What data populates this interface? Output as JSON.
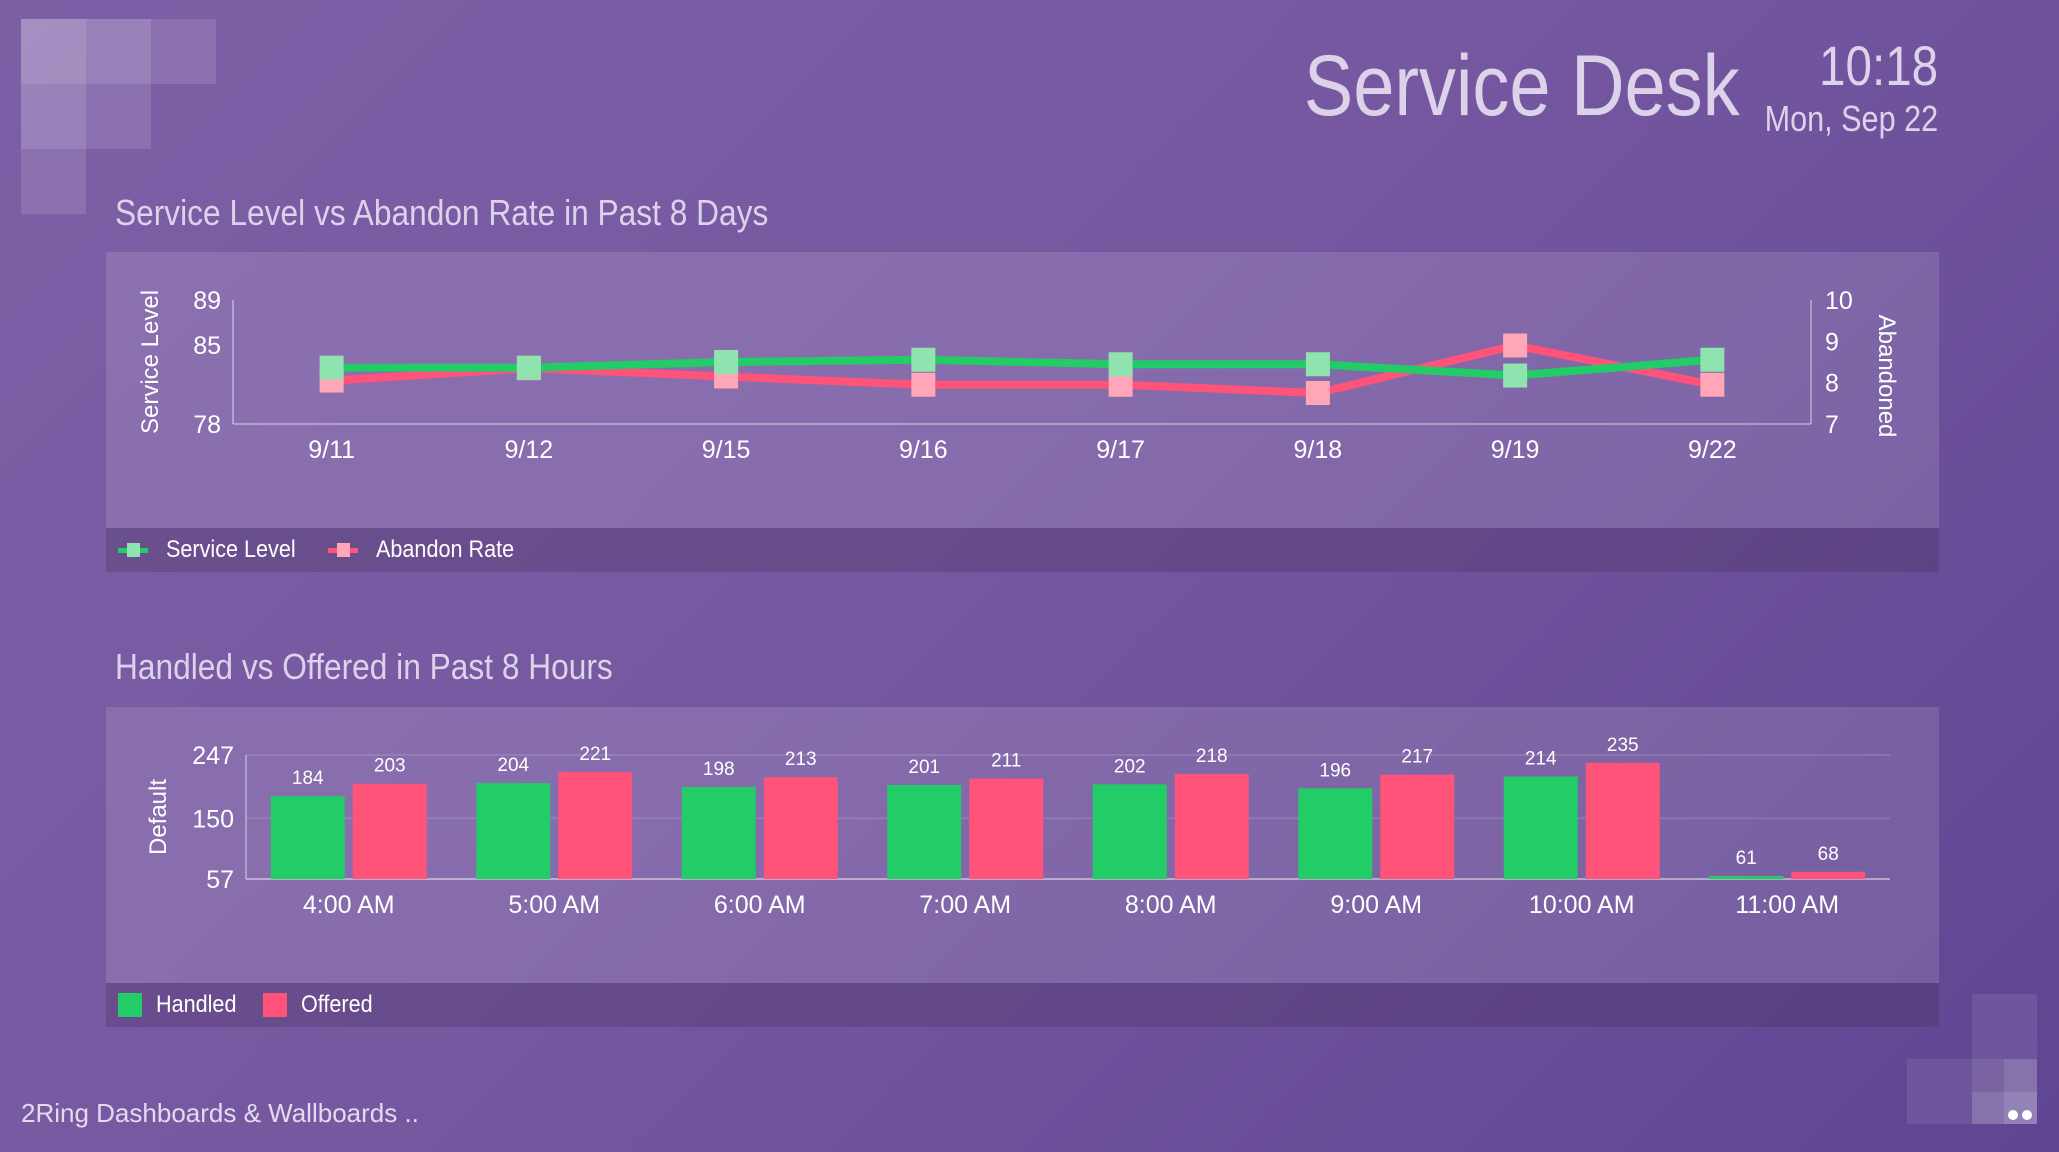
{
  "header": {
    "title": "Service Desk",
    "time": "10:18",
    "date": "Mon, Sep 22"
  },
  "colors": {
    "handled": "#22cc66",
    "offered": "#ff5379",
    "service_level_line": "#22cc66",
    "service_level_marker": "#8fe3af",
    "abandon_line": "#ff5379",
    "abandon_marker": "#ffa6b8"
  },
  "line_section": {
    "title": "Service Level vs Abandon Rate in Past 8 Days",
    "legend": [
      {
        "label": "Service Level",
        "icon": "line-square-marker-icon"
      },
      {
        "label": "Abandon Rate",
        "icon": "line-square-marker-icon"
      }
    ]
  },
  "bar_section": {
    "title": "Handled vs Offered in Past 8 Hours",
    "legend": [
      {
        "label": "Handled",
        "icon": "square-swatch-icon"
      },
      {
        "label": "Offered",
        "icon": "square-swatch-icon"
      }
    ]
  },
  "footer": {
    "text": "2Ring Dashboards & Wallboards .."
  },
  "chart_data": [
    {
      "type": "line",
      "title": "Service Level vs Abandon Rate in Past 8 Days",
      "categories": [
        "9/11",
        "9/12",
        "9/15",
        "9/16",
        "9/17",
        "9/18",
        "9/19",
        "9/22"
      ],
      "ylabel": "Service Level",
      "ylabel_right": "Abandoned",
      "ylim": [
        78,
        89
      ],
      "yticks": [
        "89",
        "85",
        "78"
      ],
      "ylim_right": [
        7,
        10
      ],
      "yticks_right": [
        "10",
        "9",
        "8",
        "7"
      ],
      "series": [
        {
          "name": "Service Level",
          "axis": "left",
          "values": [
            83.0,
            83.0,
            83.5,
            83.7,
            83.3,
            83.3,
            82.3,
            83.7
          ]
        },
        {
          "name": "Abandon Rate",
          "axis": "right",
          "values": [
            8.05,
            8.35,
            8.15,
            7.95,
            7.95,
            7.75,
            8.9,
            7.95
          ]
        }
      ],
      "legend": "bottom-left"
    },
    {
      "type": "bar",
      "title": "Handled vs Offered in Past 8 Hours",
      "categories": [
        "4:00 AM",
        "5:00 AM",
        "6:00 AM",
        "7:00 AM",
        "8:00 AM",
        "9:00 AM",
        "10:00 AM",
        "11:00 AM"
      ],
      "ylabel": "Default",
      "ylim": [
        57,
        247
      ],
      "yticks": [
        "247",
        "150",
        "57"
      ],
      "series": [
        {
          "name": "Handled",
          "values": [
            184,
            204,
            198,
            201,
            202,
            196,
            214,
            61
          ]
        },
        {
          "name": "Offered",
          "values": [
            203,
            221,
            213,
            211,
            218,
            217,
            235,
            68
          ]
        }
      ],
      "grid": true,
      "legend": "bottom-left"
    }
  ]
}
